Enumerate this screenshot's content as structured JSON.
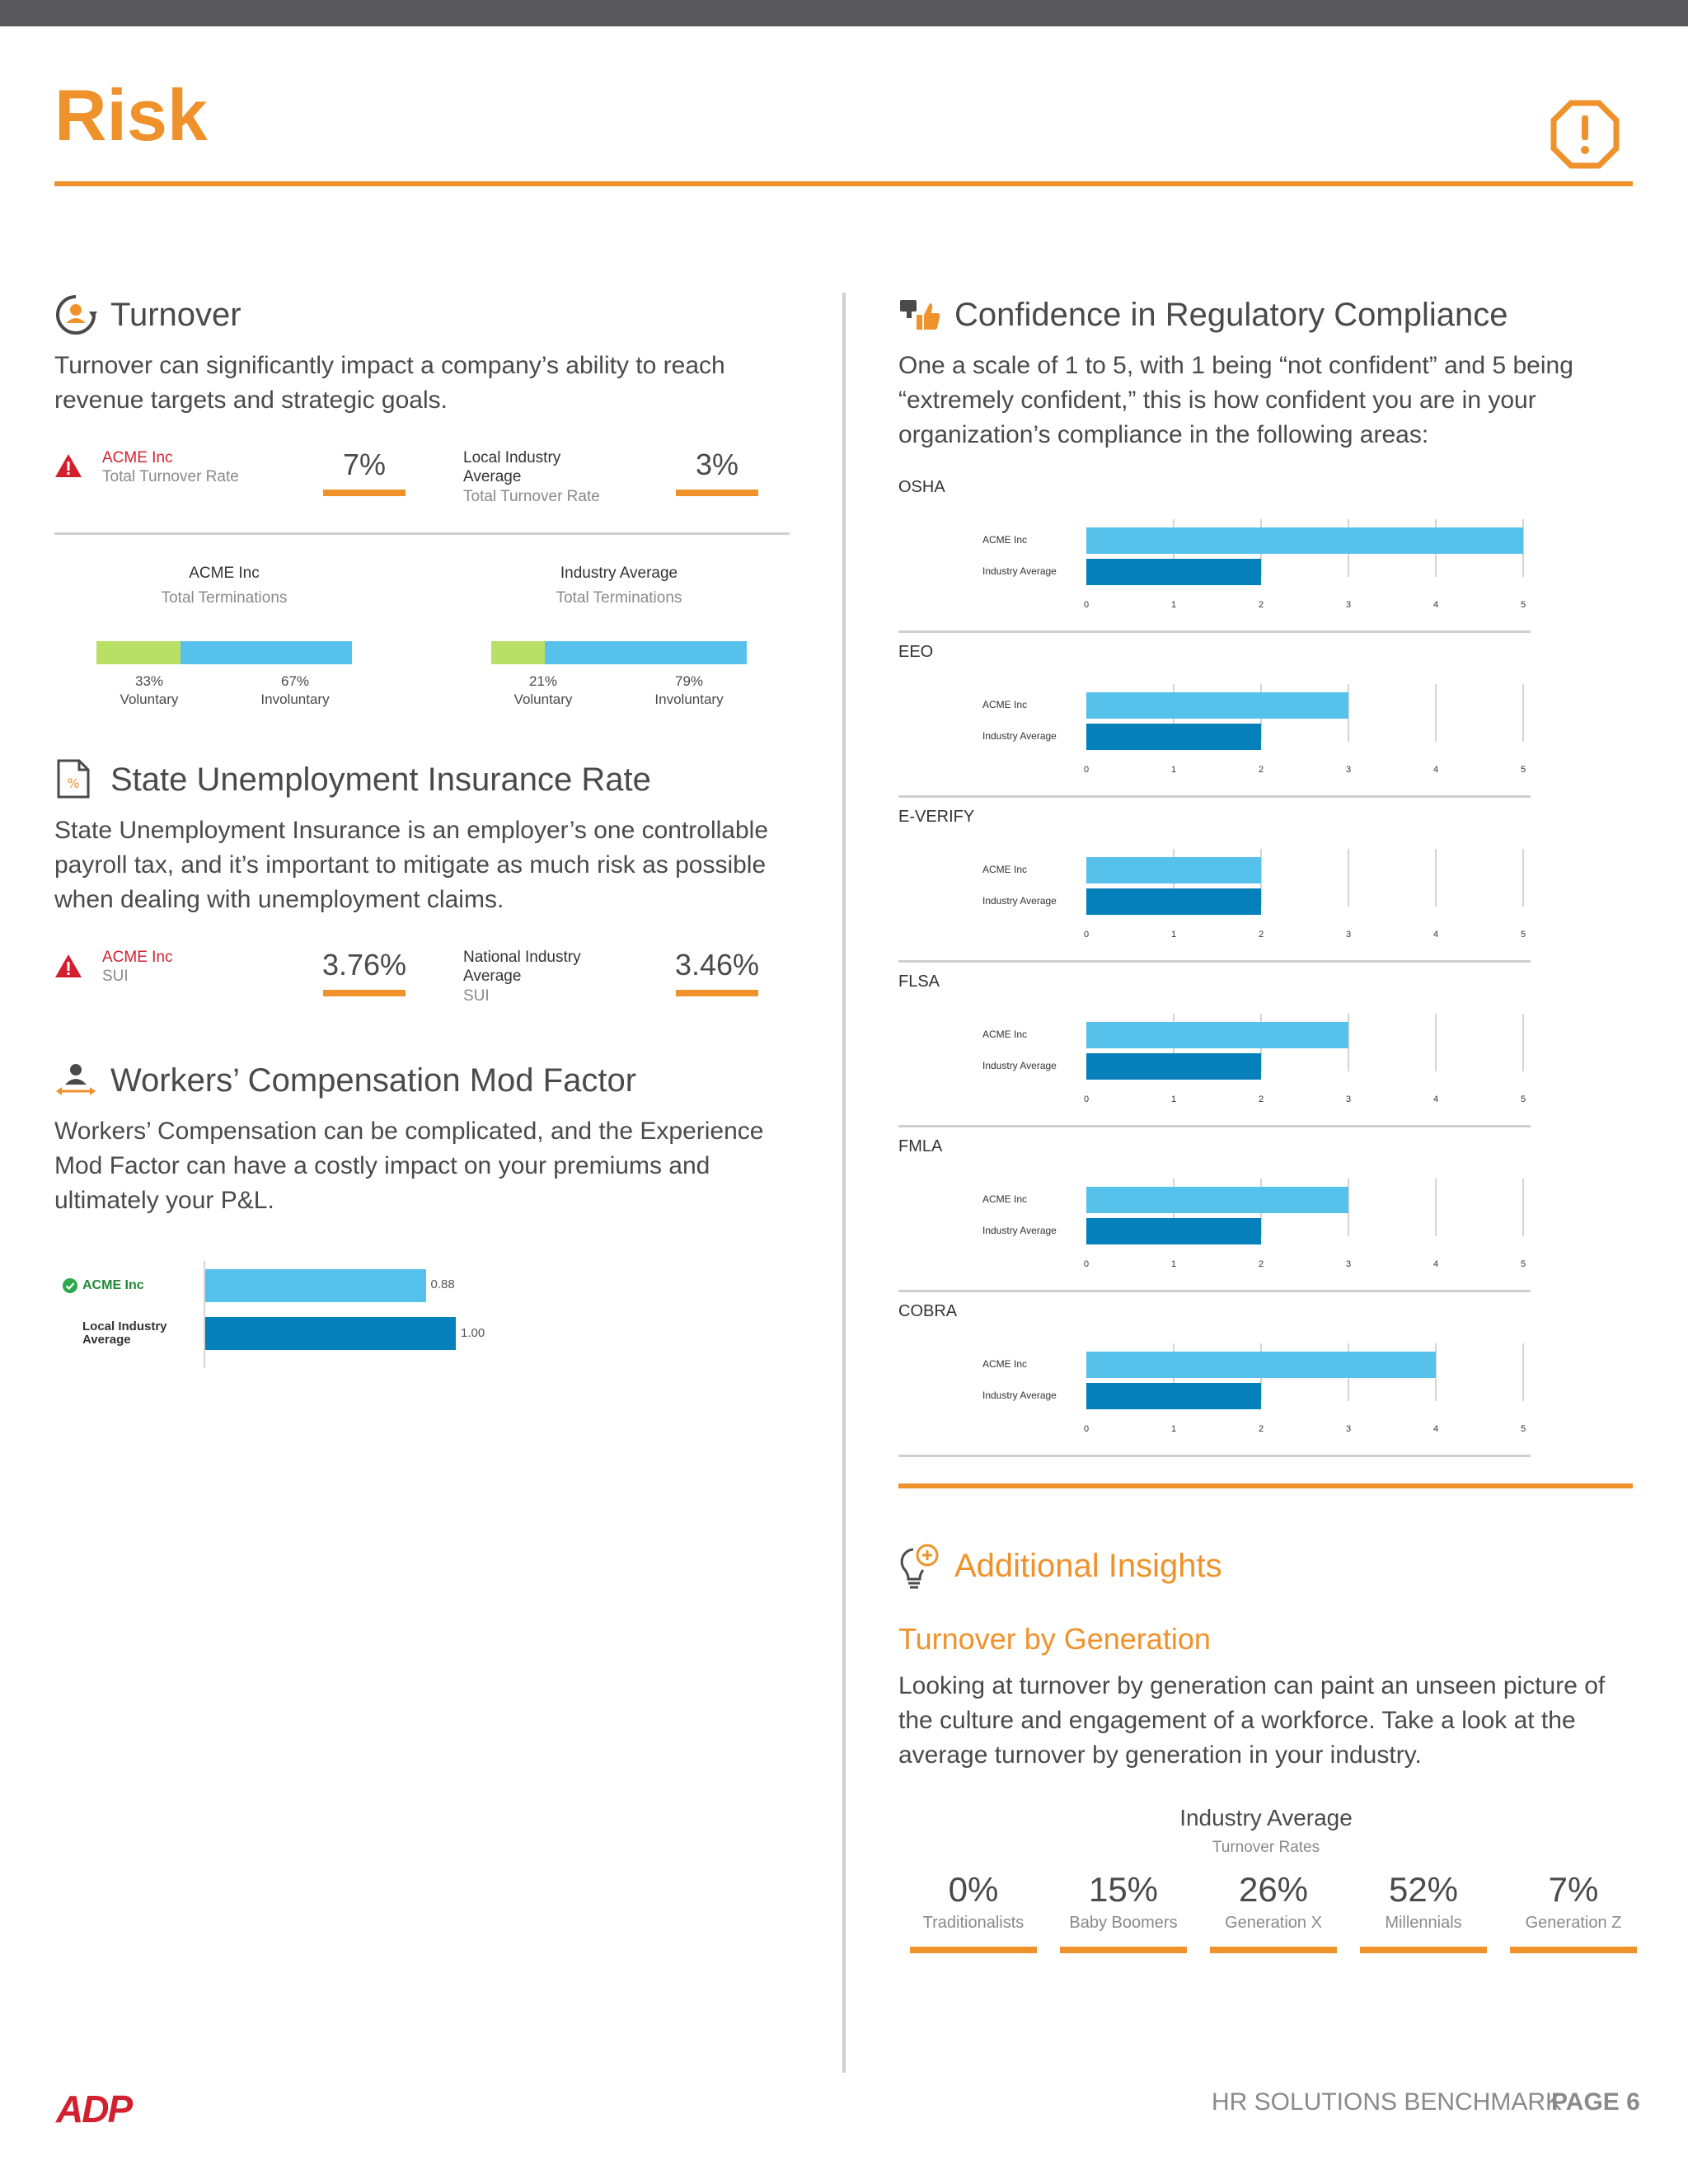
{
  "page": {
    "title": "Risk"
  },
  "turnover": {
    "title": "Turnover",
    "desc": "Turnover can significantly impact a company’s ability to reach revenue targets and strategic goals.",
    "acme_name": "ACME Inc",
    "acme_metric": "Total Turnover Rate",
    "acme_value": "7%",
    "industry_name_1": "Local Industry",
    "industry_name_2": "Average",
    "industry_metric": "Total Turnover Rate",
    "industry_value": "3%",
    "term_acme_title": "ACME Inc",
    "term_acme_sub": "Total Terminations",
    "term_acme_vol_pct": "33%",
    "term_acme_invol_pct": "67%",
    "term_acme_vol_frac": 0.33,
    "term_ind_title": "Industry Average",
    "term_ind_sub": "Total Terminations",
    "term_ind_vol_pct": "21%",
    "term_ind_invol_pct": "79%",
    "term_ind_vol_frac": 0.21,
    "voluntary_label": "Voluntary",
    "involuntary_label": "Involuntary"
  },
  "sui": {
    "title": "State Unemployment Insurance Rate",
    "desc": "State Unemployment Insurance is an employer’s one controllable payroll tax, and it’s important to mitigate as much risk as possible when dealing with unemployment claims.",
    "acme_name": "ACME Inc",
    "acme_metric": "SUI",
    "acme_value": "3.76%",
    "industry_name_1": "National Industry",
    "industry_name_2": "Average",
    "industry_metric": "SUI",
    "industry_value": "3.46%"
  },
  "workers_comp": {
    "title": "Workers’ Compensation Mod Factor",
    "desc": "Workers’ Compensation can be complicated, and the Experience Mod Factor can have a costly impact on your premiums and ultimately your P&L.",
    "acme_label": "ACME Inc",
    "industry_label_1": "Local Industry",
    "industry_label_2": "Average",
    "acme_value_text": "0.88",
    "industry_value_text": "1.00"
  },
  "compliance": {
    "title": "Confidence in Regulatory Compliance",
    "desc": "One a scale of 1 to 5, with 1 being “not confident” and 5 being “extremely confident,” this is how confident you are in your organization’s compliance in the following areas:",
    "acme_series_label": "ACME Inc",
    "industry_series_label": "Industry Average",
    "ticks": [
      "0",
      "1",
      "2",
      "3",
      "4",
      "5"
    ]
  },
  "chart_data": {
    "type": "bar",
    "orientation": "horizontal",
    "xlim": [
      0,
      5
    ],
    "categories": [
      "OSHA",
      "EEO",
      "E-VERIFY",
      "FLSA",
      "FMLA",
      "COBRA"
    ],
    "series": [
      {
        "name": "ACME Inc",
        "values": [
          5,
          3,
          2,
          3,
          3,
          4
        ],
        "color": "#56c2ec"
      },
      {
        "name": "Industry Average",
        "values": [
          2,
          2,
          2,
          2,
          2,
          2
        ],
        "color": "#0580ba"
      }
    ],
    "mod_factor": {
      "categories": [
        "ACME Inc",
        "Local Industry Average"
      ],
      "values": [
        0.88,
        1.0
      ],
      "colors": [
        "#56c2ec",
        "#0580ba"
      ]
    }
  },
  "insights": {
    "title": "Additional Insights",
    "subtitle": "Turnover by Generation",
    "desc": "Looking at turnover by generation can paint an unseen picture of the culture and engagement of a workforce. Take a look at the average turnover by generation in your industry.",
    "panel_title": "Industry Average",
    "panel_sub": "Turnover Rates",
    "generations": [
      {
        "value": "0%",
        "label": "Traditionalists"
      },
      {
        "value": "15%",
        "label": "Baby Boomers"
      },
      {
        "value": "26%",
        "label": "Generation X"
      },
      {
        "value": "52%",
        "label": "Millennials"
      },
      {
        "value": "7%",
        "label": "Generation Z"
      }
    ]
  },
  "footer": {
    "logo_text": "ADP",
    "doc_title": "HR SOLUTIONS BENCHMARK",
    "page_label": "PAGE 6"
  },
  "colors": {
    "accent": "#f0922b",
    "alert_red": "#d2202f",
    "bar_light": "#56c2ec",
    "bar_dark": "#0580ba",
    "voluntary_green": "#b9df66",
    "check_green": "#2ea84a"
  }
}
